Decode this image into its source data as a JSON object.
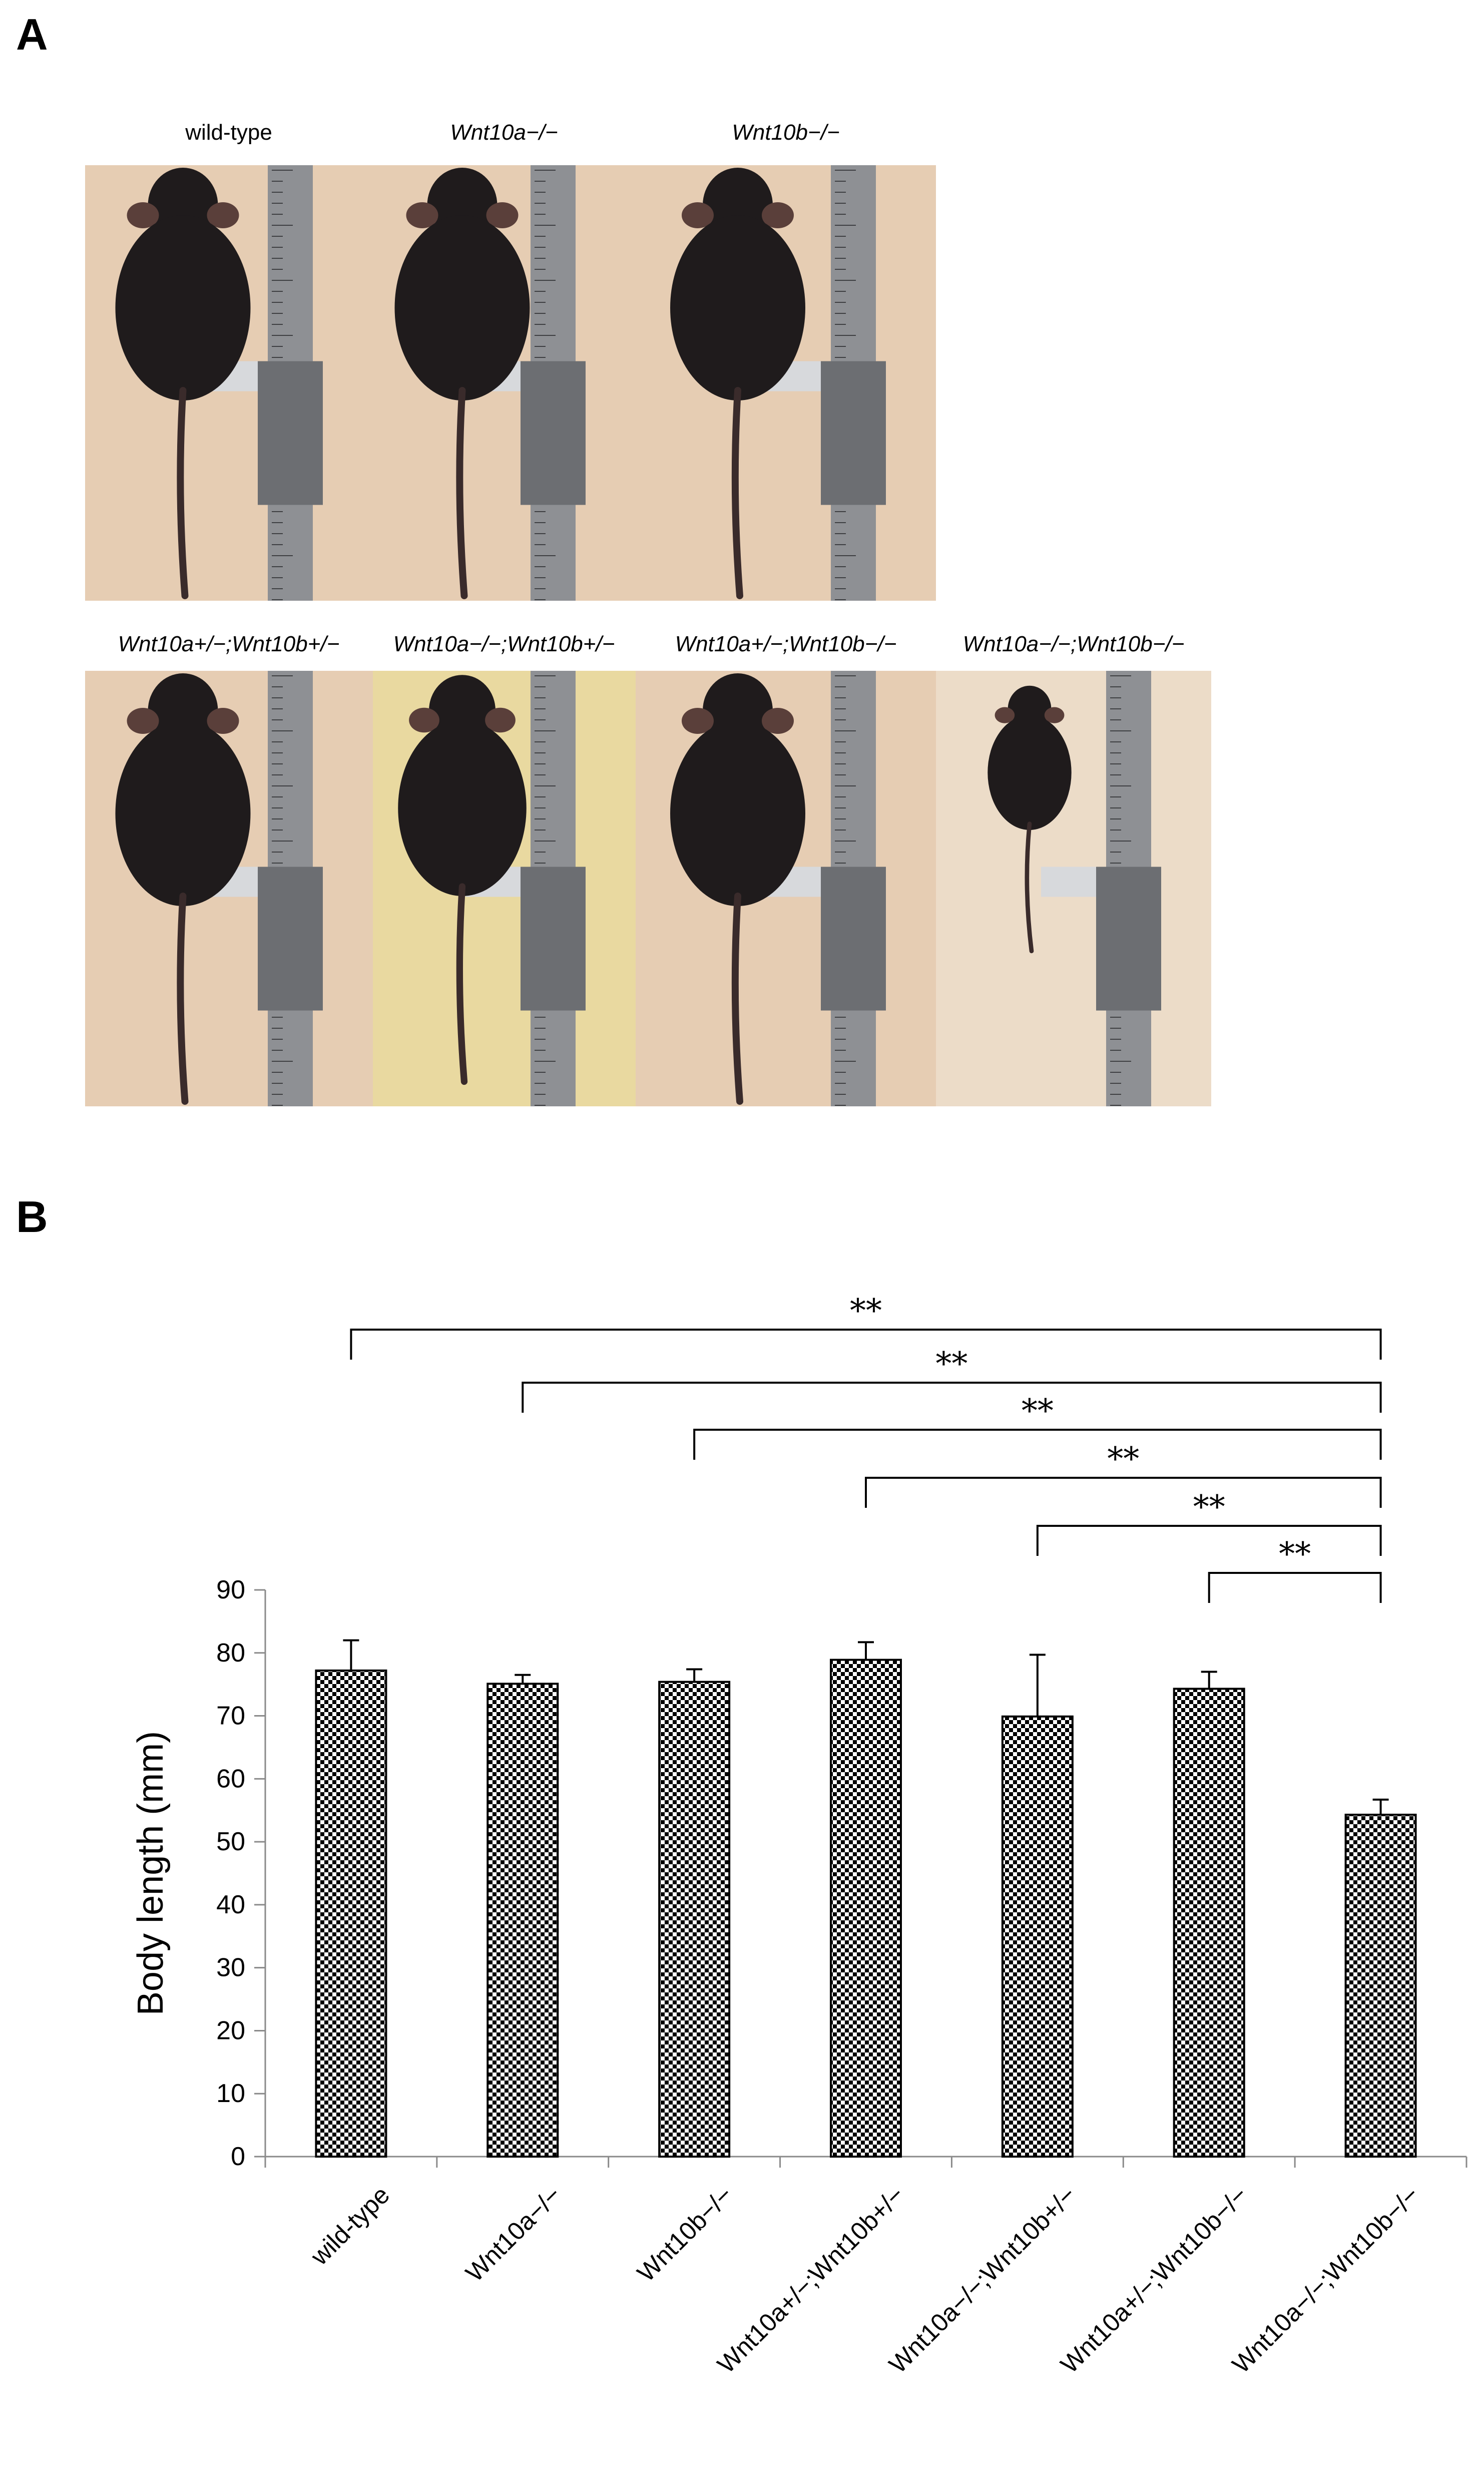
{
  "panel_a": {
    "letter": "A",
    "photos": [
      {
        "label": "wild-type",
        "italic": false,
        "bg": "#e6cdb3"
      },
      {
        "label": "Wnt10a−/−",
        "italic": true,
        "bg": "#e6cdb3"
      },
      {
        "label": "Wnt10b−/−",
        "italic": true,
        "bg": "#e6cdb3"
      },
      {
        "label": "Wnt10a+/−;Wnt10b+/−",
        "italic": true,
        "bg": "#e6cdb3"
      },
      {
        "label": "Wnt10a−/−;Wnt10b+/−",
        "italic": true,
        "bg": "#e9d9a0"
      },
      {
        "label": "Wnt10a+/−;Wnt10b−/−",
        "italic": true,
        "bg": "#e6cdb3"
      },
      {
        "label": "Wnt10a−/−;Wnt10b−/−",
        "italic": true,
        "bg": "#ecdcc8"
      }
    ],
    "colors": {
      "mouse": "#1f1b1c",
      "ruler": "#8e9094",
      "ruler_dark": "#6c6e72"
    }
  },
  "panel_b": {
    "letter": "B"
  },
  "chart_data": {
    "type": "bar",
    "categories": [
      "wild-type",
      "Wnt10a−/−",
      "Wnt10b−/−",
      "Wnt10a+/−;Wnt10b+/−",
      "Wnt10a−/−;Wnt10b+/−",
      "Wnt10a+/−;Wnt10b−/−",
      "Wnt10a−/−;Wnt10b−/−"
    ],
    "values": [
      77.2,
      75.1,
      75.4,
      78.9,
      69.9,
      74.3,
      54.3
    ],
    "errors": [
      4.8,
      1.4,
      2.0,
      2.8,
      9.8,
      2.7,
      2.4
    ],
    "ylabel": "Body length (mm)",
    "xlabel": "",
    "title": "",
    "ylim": [
      0,
      90
    ],
    "yticks": [
      0,
      10,
      20,
      30,
      40,
      50,
      60,
      70,
      80,
      90
    ],
    "bar_fill": "checkerboard",
    "grid": false,
    "significance": [
      {
        "from": 0,
        "to": 6,
        "label": "**"
      },
      {
        "from": 1,
        "to": 6,
        "label": "**"
      },
      {
        "from": 2,
        "to": 6,
        "label": "**"
      },
      {
        "from": 3,
        "to": 6,
        "label": "**"
      },
      {
        "from": 4,
        "to": 6,
        "label": "**"
      },
      {
        "from": 5,
        "to": 6,
        "label": "**"
      }
    ]
  }
}
